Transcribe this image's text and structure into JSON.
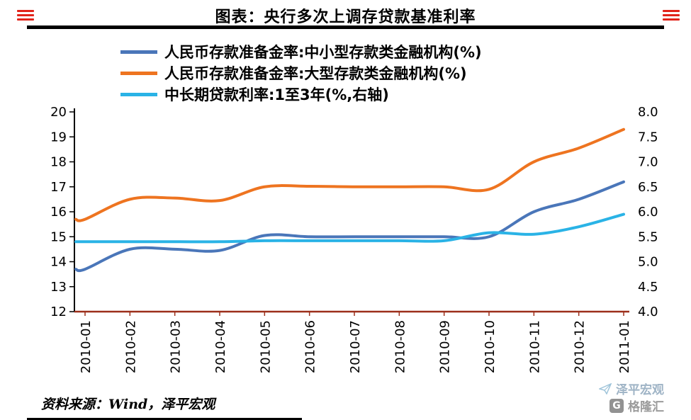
{
  "header": {
    "title": "图表：央行多次上调存贷款基准利率"
  },
  "legend": [
    {
      "label": "人民币存款准备金率:中小型存款类金融机构(%)",
      "color": "#4a76b9"
    },
    {
      "label": "人民币存款准备金率:大型存款类金融机构(%)",
      "color": "#ee7420"
    },
    {
      "label": "中长期贷款利率:1至3年(%,右轴)",
      "color": "#2ab3e6"
    }
  ],
  "chart_data": {
    "type": "line",
    "title": "图表：央行多次上调存贷款基准利率",
    "categories": [
      "2010-01",
      "2010-02",
      "2010-03",
      "2010-04",
      "2010-05",
      "2010-06",
      "2010-07",
      "2010-08",
      "2010-09",
      "2010-10",
      "2010-11",
      "2010-12",
      "2011-01"
    ],
    "series": [
      {
        "name": "人民币存款准备金率:中小型存款类金融机构(%)",
        "axis": "left",
        "color": "#4a76b9",
        "values": [
          13.7,
          14.5,
          14.5,
          14.45,
          15.05,
          15.0,
          15.0,
          15.0,
          15.0,
          15.0,
          16.0,
          16.5,
          17.2
        ]
      },
      {
        "name": "人民币存款准备金率:大型存款类金融机构(%)",
        "axis": "left",
        "color": "#ee7420",
        "values": [
          15.7,
          16.5,
          16.55,
          16.45,
          17.0,
          17.02,
          17.0,
          17.0,
          17.0,
          16.9,
          18.0,
          18.55,
          19.3
        ]
      },
      {
        "name": "中长期贷款利率:1至3年(%,右轴)",
        "axis": "right",
        "color": "#2ab3e6",
        "values": [
          5.4,
          5.4,
          5.4,
          5.4,
          5.42,
          5.42,
          5.42,
          5.42,
          5.42,
          5.58,
          5.55,
          5.7,
          5.95
        ]
      }
    ],
    "left_axis": {
      "min": 12,
      "max": 20,
      "ticks": [
        "20",
        "19",
        "18",
        "17",
        "16",
        "15",
        "14",
        "13",
        "12"
      ]
    },
    "right_axis": {
      "min": 4.0,
      "max": 8.0,
      "ticks": [
        "8.0",
        "7.5",
        "7.0",
        "6.5",
        "6.0",
        "5.5",
        "5.0",
        "4.5",
        "4.0"
      ]
    },
    "colors": {
      "y_axis": "#000000",
      "x_axis": "#9c2f1b"
    },
    "grid": false,
    "legend_position": "top"
  },
  "footer": {
    "source": "资料来源：Wind，泽平宏观"
  },
  "watermark": {
    "brand": "泽平宏观",
    "logo_letter": "G",
    "logo_text": "格隆汇"
  }
}
